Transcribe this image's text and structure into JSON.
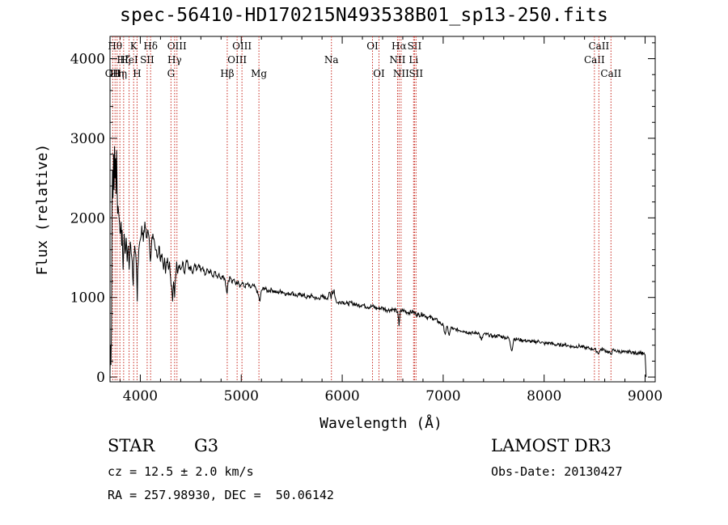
{
  "title": "spec-56410-HD170215N493538B01_sp13-250.fits",
  "info": {
    "class_label": "STAR",
    "subclass_label": "G3",
    "survey_label": "LAMOST DR3",
    "cz_text": "cz = 12.5 ± 2.0 km/s",
    "obs_date_text": "Obs-Date: 20130427",
    "coords_text": "RA = 257.98930, DEC =  50.06142"
  },
  "chart_data": {
    "type": "line",
    "title": "spec-56410-HD170215N493538B01_sp13-250.fits",
    "xlabel": "Wavelength (Å)",
    "ylabel": "Flux (relative)",
    "xlim": [
      3700,
      9100
    ],
    "ylim": [
      -60,
      4280
    ],
    "x_ticks": [
      4000,
      5000,
      6000,
      7000,
      8000,
      9000
    ],
    "y_ticks": [
      0,
      1000,
      2000,
      3000,
      4000
    ],
    "grid": false,
    "series": [
      {
        "name": "spectrum",
        "points": [
          [
            3700,
            20
          ],
          [
            3705,
            400
          ],
          [
            3710,
            150
          ],
          [
            3715,
            650
          ],
          [
            3720,
            2150
          ],
          [
            3725,
            2600
          ],
          [
            3730,
            2250
          ],
          [
            3735,
            2800
          ],
          [
            3740,
            2350
          ],
          [
            3745,
            2900
          ],
          [
            3750,
            2500
          ],
          [
            3755,
            2750
          ],
          [
            3760,
            2300
          ],
          [
            3765,
            2850
          ],
          [
            3770,
            2400
          ],
          [
            3775,
            2050
          ],
          [
            3780,
            2150
          ],
          [
            3790,
            2000
          ],
          [
            3800,
            1800
          ],
          [
            3810,
            1950
          ],
          [
            3815,
            1650
          ],
          [
            3820,
            1850
          ],
          [
            3830,
            1350
          ],
          [
            3840,
            1800
          ],
          [
            3850,
            1550
          ],
          [
            3860,
            1750
          ],
          [
            3870,
            1450
          ],
          [
            3880,
            1650
          ],
          [
            3890,
            1350
          ],
          [
            3900,
            1700
          ],
          [
            3910,
            1550
          ],
          [
            3920,
            1450
          ],
          [
            3930,
            1150
          ],
          [
            3935,
            1450
          ],
          [
            3945,
            1650
          ],
          [
            3955,
            1550
          ],
          [
            3965,
            1250
          ],
          [
            3970,
            950
          ],
          [
            3975,
            1350
          ],
          [
            3985,
            1600
          ],
          [
            3995,
            1700
          ],
          [
            4005,
            1750
          ],
          [
            4015,
            1900
          ],
          [
            4030,
            1700
          ],
          [
            4045,
            1950
          ],
          [
            4060,
            1750
          ],
          [
            4075,
            1850
          ],
          [
            4090,
            1700
          ],
          [
            4100,
            1450
          ],
          [
            4110,
            1650
          ],
          [
            4125,
            1800
          ],
          [
            4140,
            1700
          ],
          [
            4155,
            1600
          ],
          [
            4170,
            1500
          ],
          [
            4185,
            1650
          ],
          [
            4200,
            1450
          ],
          [
            4215,
            1550
          ],
          [
            4230,
            1350
          ],
          [
            4240,
            1500
          ],
          [
            4250,
            1300
          ],
          [
            4260,
            1450
          ],
          [
            4270,
            1500
          ],
          [
            4280,
            1350
          ],
          [
            4290,
            1450
          ],
          [
            4300,
            1250
          ],
          [
            4310,
            1150
          ],
          [
            4320,
            950
          ],
          [
            4330,
            1200
          ],
          [
            4340,
            1000
          ],
          [
            4350,
            1250
          ],
          [
            4360,
            1450
          ],
          [
            4370,
            1300
          ],
          [
            4380,
            1400
          ],
          [
            4400,
            1350
          ],
          [
            4420,
            1450
          ],
          [
            4440,
            1300
          ],
          [
            4460,
            1450
          ],
          [
            4480,
            1350
          ],
          [
            4500,
            1400
          ],
          [
            4520,
            1300
          ],
          [
            4540,
            1420
          ],
          [
            4560,
            1350
          ],
          [
            4580,
            1420
          ],
          [
            4600,
            1330
          ],
          [
            4620,
            1380
          ],
          [
            4640,
            1280
          ],
          [
            4660,
            1360
          ],
          [
            4680,
            1300
          ],
          [
            4700,
            1340
          ],
          [
            4720,
            1270
          ],
          [
            4740,
            1320
          ],
          [
            4760,
            1260
          ],
          [
            4780,
            1300
          ],
          [
            4800,
            1230
          ],
          [
            4820,
            1280
          ],
          [
            4840,
            1220
          ],
          [
            4860,
            1050
          ],
          [
            4870,
            1200
          ],
          [
            4890,
            1260
          ],
          [
            4910,
            1180
          ],
          [
            4930,
            1230
          ],
          [
            4950,
            1170
          ],
          [
            4970,
            1210
          ],
          [
            4990,
            1140
          ],
          [
            5010,
            1190
          ],
          [
            5030,
            1130
          ],
          [
            5060,
            1170
          ],
          [
            5090,
            1120
          ],
          [
            5120,
            1150
          ],
          [
            5150,
            1100
          ],
          [
            5175,
            1000
          ],
          [
            5185,
            950
          ],
          [
            5200,
            1090
          ],
          [
            5230,
            1120
          ],
          [
            5260,
            1080
          ],
          [
            5300,
            1100
          ],
          [
            5350,
            1060
          ],
          [
            5400,
            1080
          ],
          [
            5450,
            1040
          ],
          [
            5500,
            1060
          ],
          [
            5550,
            1020
          ],
          [
            5600,
            1040
          ],
          [
            5650,
            1000
          ],
          [
            5700,
            1020
          ],
          [
            5750,
            980
          ],
          [
            5800,
            1010
          ],
          [
            5850,
            990
          ],
          [
            5880,
            1060
          ],
          [
            5890,
            980
          ],
          [
            5900,
            1090
          ],
          [
            5910,
            1050
          ],
          [
            5920,
            1100
          ],
          [
            5930,
            1000
          ],
          [
            5950,
            930
          ],
          [
            6000,
            950
          ],
          [
            6050,
            920
          ],
          [
            6100,
            930
          ],
          [
            6150,
            900
          ],
          [
            6200,
            910
          ],
          [
            6250,
            880
          ],
          [
            6300,
            890
          ],
          [
            6350,
            860
          ],
          [
            6400,
            870
          ],
          [
            6450,
            840
          ],
          [
            6500,
            850
          ],
          [
            6550,
            820
          ],
          [
            6563,
            640
          ],
          [
            6575,
            820
          ],
          [
            6600,
            840
          ],
          [
            6650,
            810
          ],
          [
            6700,
            820
          ],
          [
            6750,
            780
          ],
          [
            6800,
            790
          ],
          [
            6850,
            750
          ],
          [
            6900,
            740
          ],
          [
            6950,
            700
          ],
          [
            7000,
            650
          ],
          [
            7020,
            540
          ],
          [
            7040,
            640
          ],
          [
            7060,
            520
          ],
          [
            7080,
            630
          ],
          [
            7100,
            600
          ],
          [
            7150,
            590
          ],
          [
            7200,
            580
          ],
          [
            7250,
            560
          ],
          [
            7300,
            550
          ],
          [
            7350,
            560
          ],
          [
            7380,
            460
          ],
          [
            7400,
            540
          ],
          [
            7450,
            530
          ],
          [
            7500,
            510
          ],
          [
            7550,
            520
          ],
          [
            7600,
            500
          ],
          [
            7650,
            490
          ],
          [
            7680,
            330
          ],
          [
            7700,
            480
          ],
          [
            7750,
            470
          ],
          [
            7800,
            460
          ],
          [
            7850,
            450
          ],
          [
            7900,
            440
          ],
          [
            7950,
            450
          ],
          [
            8000,
            420
          ],
          [
            8050,
            430
          ],
          [
            8100,
            410
          ],
          [
            8150,
            400
          ],
          [
            8200,
            410
          ],
          [
            8250,
            390
          ],
          [
            8300,
            380
          ],
          [
            8350,
            390
          ],
          [
            8400,
            370
          ],
          [
            8450,
            360
          ],
          [
            8500,
            350
          ],
          [
            8542,
            300
          ],
          [
            8560,
            350
          ],
          [
            8600,
            340
          ],
          [
            8662,
            290
          ],
          [
            8680,
            340
          ],
          [
            8700,
            330
          ],
          [
            8750,
            320
          ],
          [
            8800,
            310
          ],
          [
            8850,
            320
          ],
          [
            8900,
            300
          ],
          [
            8950,
            310
          ],
          [
            9000,
            280
          ],
          [
            9010,
            0
          ]
        ]
      }
    ],
    "line_markers": [
      {
        "wavelength": 3727,
        "label": "OII",
        "row": 2
      },
      {
        "wavelength": 3750,
        "label": "Hθ",
        "row": 0
      },
      {
        "wavelength": 3770,
        "label": "Hη",
        "row": 2
      },
      {
        "wavelength": 3798,
        "label": "Hη",
        "row": 2
      },
      {
        "wavelength": 3835,
        "label": "Hζ",
        "row": 1
      },
      {
        "wavelength": 3889,
        "label": "HeI",
        "row": 1
      },
      {
        "wavelength": 3934,
        "label": "K",
        "row": 0
      },
      {
        "wavelength": 3968,
        "label": "H",
        "row": 2
      },
      {
        "wavelength": 4068,
        "label": "SII",
        "row": 1
      },
      {
        "wavelength": 4102,
        "label": "Hδ",
        "row": 0
      },
      {
        "wavelength": 4304,
        "label": "G",
        "row": 2
      },
      {
        "wavelength": 4340,
        "label": "Hγ",
        "row": 1
      },
      {
        "wavelength": 4363,
        "label": "OIII",
        "row": 0
      },
      {
        "wavelength": 4861,
        "label": "Hβ",
        "row": 2
      },
      {
        "wavelength": 4959,
        "label": "OIII",
        "row": 1
      },
      {
        "wavelength": 5007,
        "label": "OIII",
        "row": 0
      },
      {
        "wavelength": 5175,
        "label": "Mg",
        "row": 2
      },
      {
        "wavelength": 5893,
        "label": "Na",
        "row": 1
      },
      {
        "wavelength": 6300,
        "label": "OI",
        "row": 0
      },
      {
        "wavelength": 6364,
        "label": "OI",
        "row": 2
      },
      {
        "wavelength": 6548,
        "label": "NII",
        "row": 1
      },
      {
        "wavelength": 6563,
        "label": "Hα",
        "row": 0
      },
      {
        "wavelength": 6583,
        "label": "NII",
        "row": 2
      },
      {
        "wavelength": 6707,
        "label": "Li",
        "row": 1
      },
      {
        "wavelength": 6716,
        "label": "SII",
        "row": 0
      },
      {
        "wavelength": 6731,
        "label": "SII",
        "row": 2
      },
      {
        "wavelength": 8498,
        "label": "CaII",
        "row": 1
      },
      {
        "wavelength": 8542,
        "label": "CaII",
        "row": 0
      },
      {
        "wavelength": 8662,
        "label": "CaII",
        "row": 2
      }
    ]
  }
}
